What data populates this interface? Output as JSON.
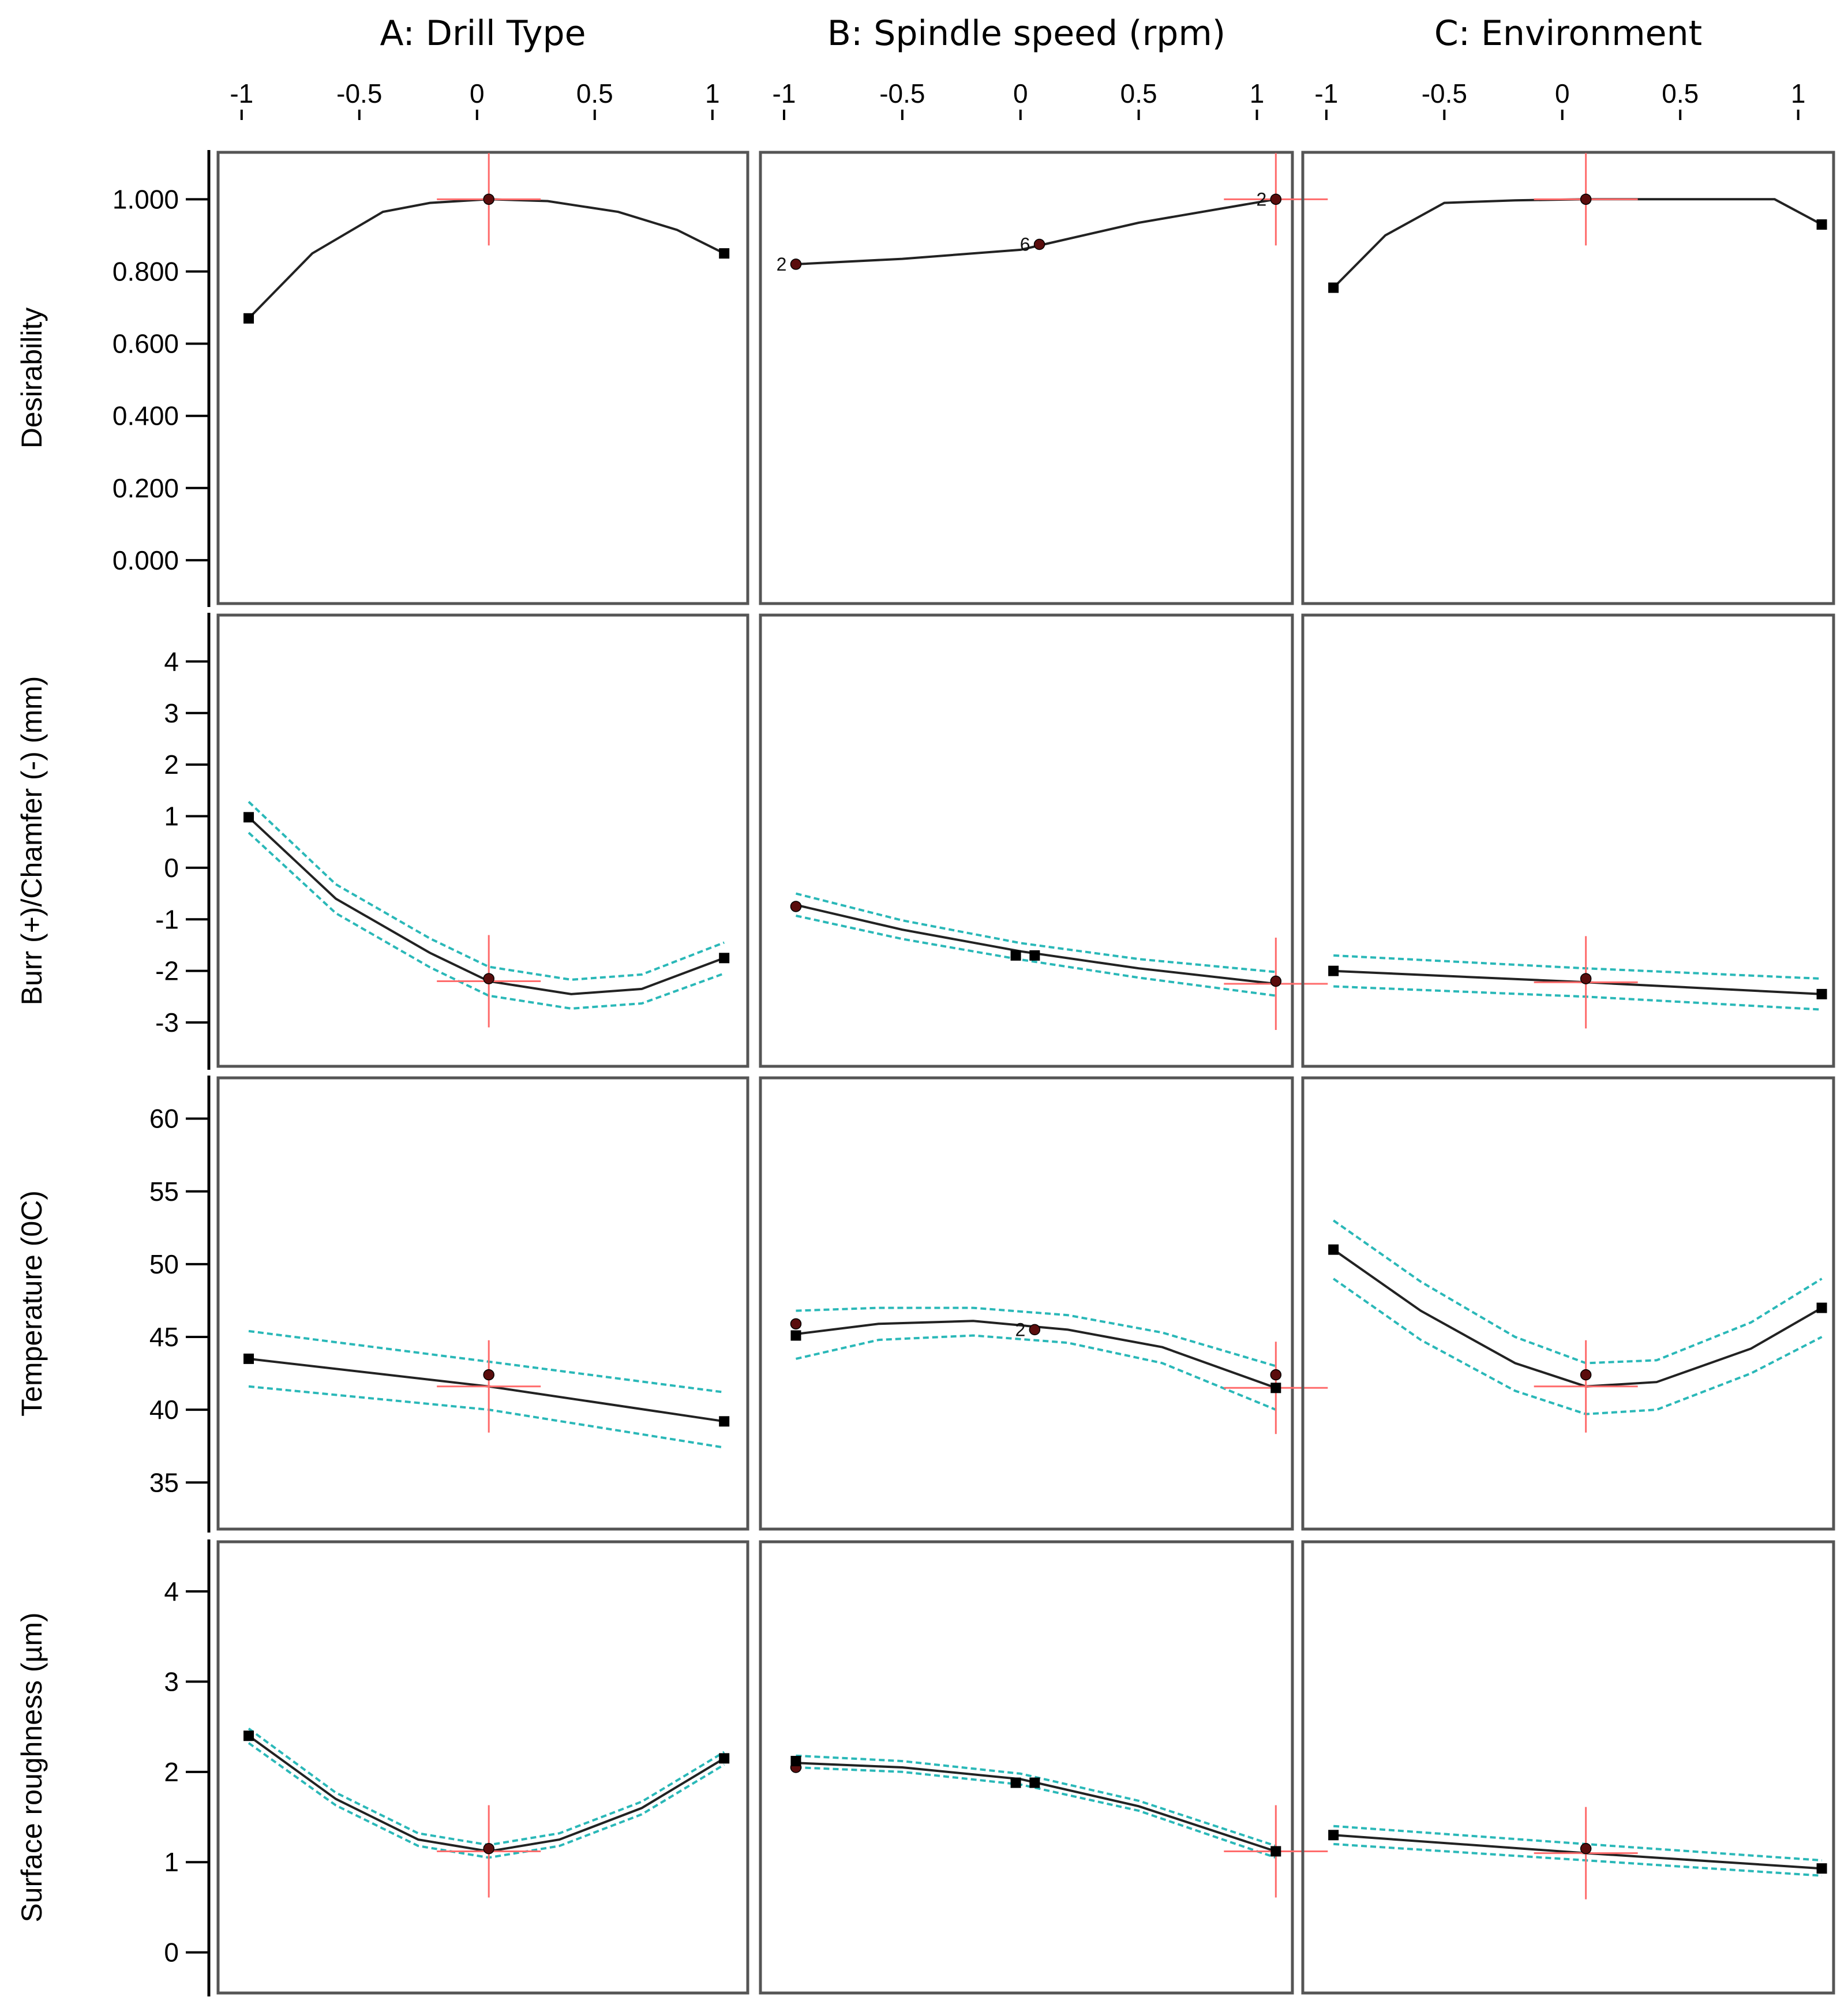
{
  "colors": {
    "curve": "#222222",
    "band": "#2ab8b8",
    "crosshair": "#ff6b6b",
    "design_point": "#5a0d0d",
    "end_point": "#000000",
    "frame": "#555555"
  },
  "chart_data": {
    "type": "line",
    "title": "",
    "x_ticks": [
      -1,
      -0.5,
      0,
      0.5,
      1
    ],
    "x_tick_labels": [
      "-1",
      "-0.5",
      "0",
      "0.5",
      "1"
    ],
    "xlim": [
      -1.1,
      1.15
    ],
    "columns": [
      {
        "id": "A",
        "title": "A: Drill Type",
        "setting": 0.05
      },
      {
        "id": "B",
        "title": "B: Spindle speed (rpm)",
        "setting": 1.08
      },
      {
        "id": "C",
        "title": "C: Environment",
        "setting": 0.1
      }
    ],
    "rows": [
      {
        "ylabel": "Desirability",
        "ylim": [
          -0.12,
          1.13
        ],
        "y_ticks": [
          0,
          0.2,
          0.4,
          0.6,
          0.8,
          1.0
        ],
        "y_tick_labels": [
          "0.000",
          "0.200",
          "0.400",
          "0.600",
          "0.800",
          "1.000"
        ],
        "panels": [
          {
            "column": "A",
            "x": [
              -0.97,
              -0.7,
              -0.4,
              -0.2,
              0.05,
              0.3,
              0.6,
              0.85,
              1.05
            ],
            "y": [
              0.67,
              0.85,
              0.965,
              0.99,
              1.0,
              0.995,
              0.965,
              0.915,
              0.85
            ],
            "lower": [],
            "upper": [],
            "markers": [
              {
                "x": -0.97,
                "y": 0.67,
                "kind": "end"
              },
              {
                "x": 1.05,
                "y": 0.85,
                "kind": "end"
              },
              {
                "x": 0.05,
                "y": 1.0,
                "kind": "design"
              }
            ]
          },
          {
            "column": "B",
            "x": [
              -0.95,
              -0.5,
              0,
              0.1,
              0.5,
              1.08
            ],
            "y": [
              0.82,
              0.835,
              0.86,
              0.875,
              0.935,
              1.0
            ],
            "lower": [],
            "upper": [],
            "markers": [
              {
                "x": -0.95,
                "y": 0.82,
                "kind": "design",
                "label": "2"
              },
              {
                "x": 0.08,
                "y": 0.875,
                "kind": "design",
                "label": "6"
              },
              {
                "x": 1.08,
                "y": 1.0,
                "kind": "design",
                "label": "2"
              }
            ]
          },
          {
            "column": "C",
            "x": [
              -0.97,
              -0.75,
              -0.5,
              -0.2,
              0.1,
              0.5,
              0.9,
              1.1
            ],
            "y": [
              0.755,
              0.9,
              0.99,
              0.997,
              1.0,
              1.0,
              1.0,
              0.93
            ],
            "lower": [],
            "upper": [],
            "markers": [
              {
                "x": -0.97,
                "y": 0.755,
                "kind": "end"
              },
              {
                "x": 1.1,
                "y": 0.93,
                "kind": "end"
              },
              {
                "x": 0.1,
                "y": 1.0,
                "kind": "design"
              }
            ]
          }
        ]
      },
      {
        "ylabel": "Burr (+)/Chamfer (-)  (mm)",
        "ylim": [
          -3.85,
          4.9
        ],
        "y_ticks": [
          -3,
          -2,
          -1,
          0,
          1,
          2,
          3,
          4
        ],
        "y_tick_labels": [
          "-3",
          "-2",
          "-1",
          "0",
          "1",
          "2",
          "3",
          "4"
        ],
        "panels": [
          {
            "column": "A",
            "x": [
              -0.97,
              -0.6,
              -0.2,
              0.05,
              0.4,
              0.7,
              1.05
            ],
            "y": [
              0.98,
              -0.6,
              -1.65,
              -2.2,
              -2.45,
              -2.35,
              -1.75
            ],
            "lower": [
              0.68,
              -0.88,
              -1.93,
              -2.48,
              -2.73,
              -2.63,
              -2.05
            ],
            "upper": [
              1.28,
              -0.32,
              -1.37,
              -1.92,
              -2.17,
              -2.07,
              -1.45
            ],
            "markers": [
              {
                "x": -0.97,
                "y": 0.98,
                "kind": "end"
              },
              {
                "x": 1.05,
                "y": -1.75,
                "kind": "end"
              },
              {
                "x": 0.05,
                "y": -2.15,
                "kind": "design"
              }
            ]
          },
          {
            "column": "B",
            "x": [
              -0.95,
              -0.5,
              0,
              0.5,
              1.08
            ],
            "y": [
              -0.72,
              -1.2,
              -1.62,
              -1.95,
              -2.25
            ],
            "lower": [
              -0.93,
              -1.38,
              -1.78,
              -2.13,
              -2.48
            ],
            "upper": [
              -0.5,
              -1.02,
              -1.46,
              -1.77,
              -2.02
            ],
            "markers": [
              {
                "x": -0.95,
                "y": -0.75,
                "kind": "design"
              },
              {
                "x": -0.02,
                "y": -1.7,
                "kind": "end"
              },
              {
                "x": 0.06,
                "y": -1.7,
                "kind": "end"
              },
              {
                "x": 1.08,
                "y": -2.2,
                "kind": "design"
              }
            ]
          },
          {
            "column": "C",
            "x": [
              -0.97,
              0.1,
              1.1
            ],
            "y": [
              -2.0,
              -2.22,
              -2.45
            ],
            "lower": [
              -2.3,
              -2.5,
              -2.75
            ],
            "upper": [
              -1.7,
              -1.95,
              -2.15
            ],
            "markers": [
              {
                "x": -0.97,
                "y": -2.0,
                "kind": "end"
              },
              {
                "x": 1.1,
                "y": -2.45,
                "kind": "end"
              },
              {
                "x": 0.1,
                "y": -2.15,
                "kind": "design"
              }
            ]
          }
        ]
      },
      {
        "ylabel": "Temperature (0C)",
        "ylim": [
          31.8,
          62.8
        ],
        "y_ticks": [
          35,
          40,
          45,
          50,
          55,
          60
        ],
        "y_tick_labels": [
          "35",
          "40",
          "45",
          "50",
          "55",
          "60"
        ],
        "panels": [
          {
            "column": "A",
            "x": [
              -0.97,
              0.05,
              1.05
            ],
            "y": [
              43.5,
              41.6,
              39.2
            ],
            "lower": [
              41.6,
              40.0,
              37.4
            ],
            "upper": [
              45.4,
              43.3,
              41.2
            ],
            "markers": [
              {
                "x": -0.97,
                "y": 43.5,
                "kind": "end"
              },
              {
                "x": 1.05,
                "y": 39.2,
                "kind": "end"
              },
              {
                "x": 0.05,
                "y": 42.4,
                "kind": "design"
              }
            ]
          },
          {
            "column": "B",
            "x": [
              -0.95,
              -0.6,
              -0.2,
              0.2,
              0.6,
              1.08
            ],
            "y": [
              45.2,
              45.9,
              46.1,
              45.5,
              44.3,
              41.5
            ],
            "lower": [
              43.5,
              44.8,
              45.1,
              44.6,
              43.2,
              40.0
            ],
            "upper": [
              46.8,
              47.0,
              47.0,
              46.5,
              45.3,
              43.0
            ],
            "markers": [
              {
                "x": -0.95,
                "y": 45.9,
                "kind": "design"
              },
              {
                "x": -0.95,
                "y": 45.1,
                "kind": "end"
              },
              {
                "x": 0.06,
                "y": 45.5,
                "kind": "design",
                "label": "2"
              },
              {
                "x": 1.08,
                "y": 42.4,
                "kind": "design"
              },
              {
                "x": 1.08,
                "y": 41.5,
                "kind": "end"
              }
            ]
          },
          {
            "column": "C",
            "x": [
              -0.97,
              -0.6,
              -0.2,
              0.1,
              0.4,
              0.8,
              1.1
            ],
            "y": [
              51.0,
              46.8,
              43.2,
              41.6,
              41.9,
              44.2,
              47.0
            ],
            "lower": [
              49.0,
              44.8,
              41.3,
              39.7,
              40.0,
              42.5,
              45.0
            ],
            "upper": [
              53.0,
              48.8,
              45.0,
              43.2,
              43.4,
              46.0,
              49.0
            ],
            "markers": [
              {
                "x": -0.97,
                "y": 51.0,
                "kind": "end"
              },
              {
                "x": 1.1,
                "y": 47.0,
                "kind": "end"
              },
              {
                "x": 0.1,
                "y": 42.4,
                "kind": "design"
              }
            ]
          }
        ]
      },
      {
        "ylabel": "Surface roughness (µm)",
        "ylim": [
          -0.45,
          4.55
        ],
        "y_ticks": [
          0,
          1,
          2,
          3,
          4
        ],
        "y_tick_labels": [
          "0",
          "1",
          "2",
          "3",
          "4"
        ],
        "panels": [
          {
            "column": "A",
            "x": [
              -0.97,
              -0.6,
              -0.25,
              0.05,
              0.35,
              0.7,
              1.05
            ],
            "y": [
              2.4,
              1.7,
              1.25,
              1.12,
              1.25,
              1.6,
              2.15
            ],
            "lower": [
              2.32,
              1.63,
              1.18,
              1.05,
              1.18,
              1.53,
              2.08
            ],
            "upper": [
              2.48,
              1.77,
              1.32,
              1.19,
              1.32,
              1.67,
              2.22
            ],
            "markers": [
              {
                "x": -0.97,
                "y": 2.4,
                "kind": "end"
              },
              {
                "x": 1.05,
                "y": 2.15,
                "kind": "end"
              },
              {
                "x": 0.05,
                "y": 1.15,
                "kind": "design"
              }
            ]
          },
          {
            "column": "B",
            "x": [
              -0.95,
              -0.5,
              0,
              0.5,
              1.08
            ],
            "y": [
              2.1,
              2.05,
              1.92,
              1.62,
              1.12
            ],
            "lower": [
              2.05,
              2.0,
              1.86,
              1.57,
              1.05
            ],
            "upper": [
              2.18,
              2.12,
              1.98,
              1.68,
              1.18
            ],
            "markers": [
              {
                "x": -0.95,
                "y": 2.05,
                "kind": "design"
              },
              {
                "x": -0.95,
                "y": 2.12,
                "kind": "end"
              },
              {
                "x": -0.02,
                "y": 1.88,
                "kind": "end"
              },
              {
                "x": 0.06,
                "y": 1.88,
                "kind": "end"
              },
              {
                "x": 1.08,
                "y": 1.12,
                "kind": "end"
              }
            ]
          },
          {
            "column": "C",
            "x": [
              -0.97,
              0.1,
              1.1
            ],
            "y": [
              1.3,
              1.1,
              0.93
            ],
            "lower": [
              1.2,
              1.02,
              0.85
            ],
            "upper": [
              1.4,
              1.2,
              1.02
            ],
            "markers": [
              {
                "x": -0.97,
                "y": 1.3,
                "kind": "end"
              },
              {
                "x": 1.1,
                "y": 0.93,
                "kind": "end"
              },
              {
                "x": 0.1,
                "y": 1.15,
                "kind": "design"
              }
            ]
          }
        ]
      }
    ]
  }
}
